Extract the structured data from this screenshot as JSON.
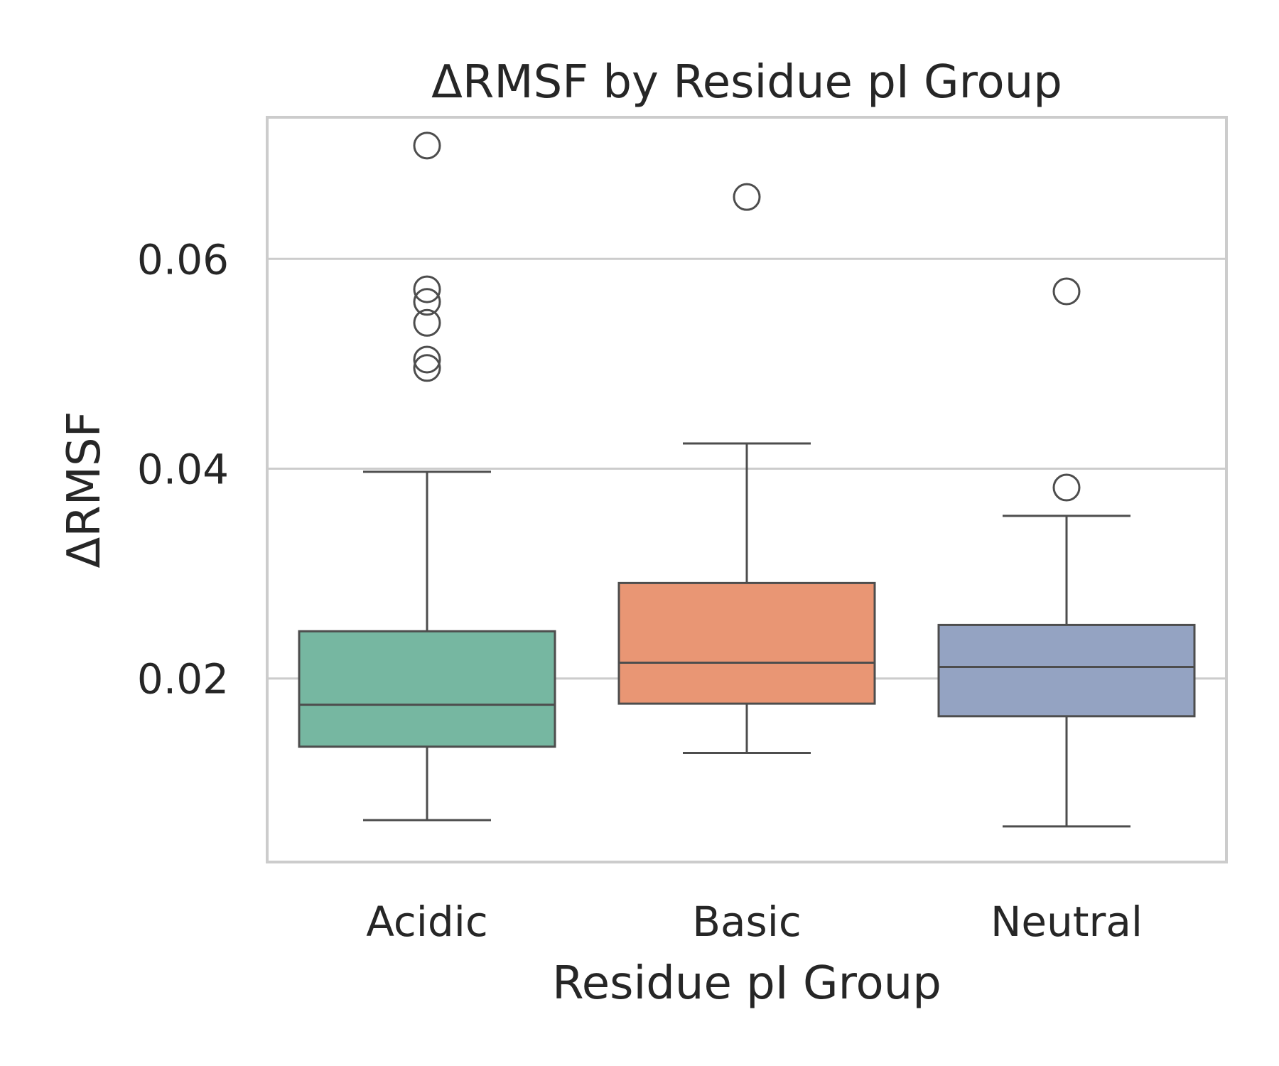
{
  "chart_data": {
    "type": "box",
    "title": "ΔRMSF by Residue pI Group",
    "xlabel": "Residue pI Group",
    "ylabel": "ΔRMSF",
    "ylim": [
      0.0025,
      0.0735
    ],
    "yticks": [
      0.02,
      0.04,
      0.06
    ],
    "ytick_labels": [
      "0.02",
      "0.04",
      "0.06"
    ],
    "grid": "horizontal",
    "categories": [
      "Acidic",
      "Basic",
      "Neutral"
    ],
    "boxes": [
      {
        "category": "Acidic",
        "color": "#76b7a1",
        "whisker_low": 0.0065,
        "q1": 0.0135,
        "median": 0.0175,
        "q3": 0.0245,
        "whisker_high": 0.0397,
        "outliers": [
          0.0708,
          0.0571,
          0.0559,
          0.0539,
          0.0504,
          0.0496
        ]
      },
      {
        "category": "Basic",
        "color": "#e99674",
        "whisker_low": 0.0129,
        "q1": 0.0176,
        "median": 0.0215,
        "q3": 0.0291,
        "whisker_high": 0.0424,
        "outliers": [
          0.0659
        ]
      },
      {
        "category": "Neutral",
        "color": "#94a3c2",
        "whisker_low": 0.0059,
        "q1": 0.0164,
        "median": 0.0211,
        "q3": 0.0251,
        "whisker_high": 0.0355,
        "outliers": [
          0.0569,
          0.0382
        ]
      }
    ]
  }
}
